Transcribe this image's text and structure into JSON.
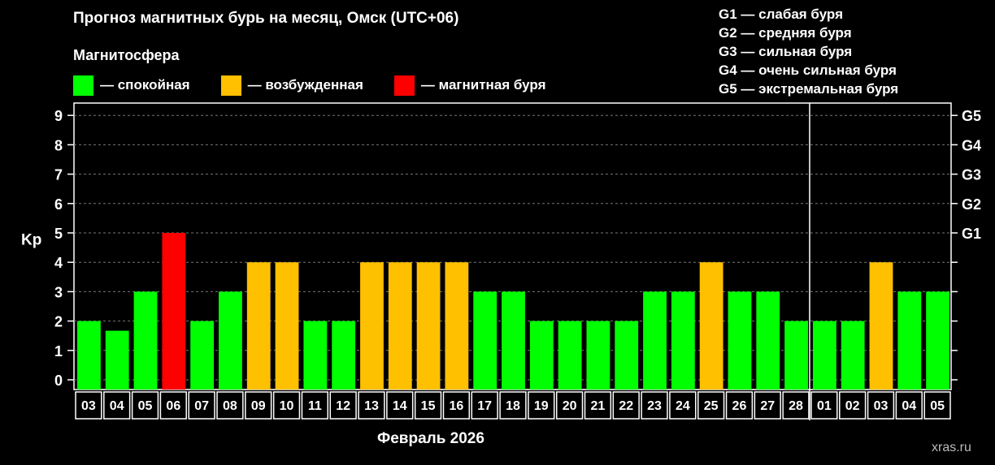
{
  "title": "Прогноз магнитных бурь на месяц, Омск (UTC+06)",
  "legend": {
    "title": "Магнитосфера",
    "items": [
      {
        "label": "— спокойная",
        "color": "#00ff00"
      },
      {
        "label": "— возбужденная",
        "color": "#ffc000"
      },
      {
        "label": "— магнитная буря",
        "color": "#ff0000"
      }
    ]
  },
  "storm_levels": [
    "G1 — слабая буря",
    "G2 — средняя буря",
    "G3 — сильная буря",
    "G4 — очень сильная буря",
    "G5 — экстремальная буря"
  ],
  "month_label": "Февраль 2026",
  "watermark": "xras.ru",
  "chart_data": {
    "type": "bar",
    "ylabel": "Kp",
    "xlabel": "Февраль 2026",
    "ylim": [
      0,
      9
    ],
    "y_ticks": [
      "0",
      "1",
      "2",
      "3",
      "4",
      "5",
      "6",
      "7",
      "8",
      "9"
    ],
    "y2_ticks": [
      {
        "value": 5,
        "label": "G1"
      },
      {
        "value": 6,
        "label": "G2"
      },
      {
        "value": 7,
        "label": "G3"
      },
      {
        "value": 8,
        "label": "G4"
      },
      {
        "value": 9,
        "label": "G5"
      }
    ],
    "grid": true,
    "month_separator_after": "28",
    "categories": [
      "03",
      "04",
      "05",
      "06",
      "07",
      "08",
      "09",
      "10",
      "11",
      "12",
      "13",
      "14",
      "15",
      "16",
      "17",
      "18",
      "19",
      "20",
      "21",
      "22",
      "23",
      "24",
      "25",
      "26",
      "27",
      "28",
      "01",
      "02",
      "03",
      "04",
      "05"
    ],
    "values": [
      2,
      1.67,
      3,
      5,
      2,
      3,
      4,
      4,
      2,
      2,
      4,
      4,
      4,
      4,
      3,
      3,
      2,
      2,
      2,
      2,
      3,
      3,
      4,
      3,
      3,
      2,
      2,
      2,
      4,
      3,
      3
    ],
    "colors": {
      "quiet": "#00ff00",
      "active": "#ffc000",
      "storm": "#ff0000"
    }
  }
}
